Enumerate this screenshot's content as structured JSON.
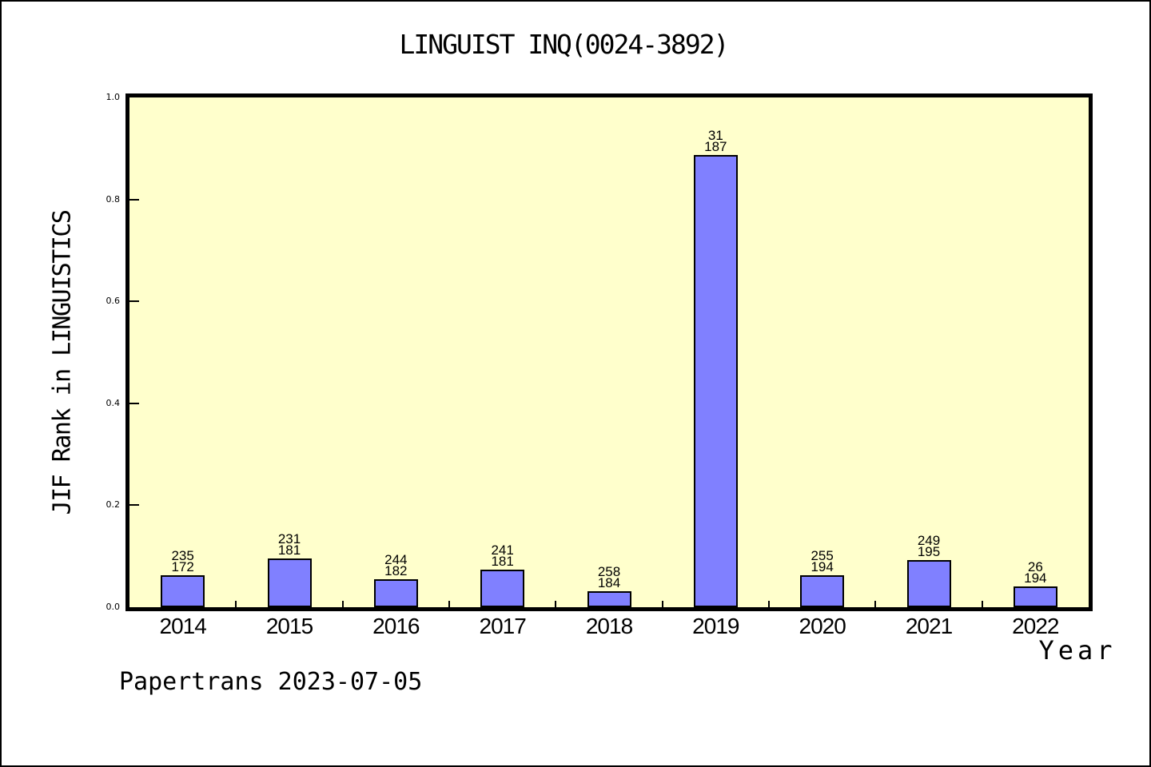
{
  "chart_data": {
    "type": "bar",
    "title": "LINGUIST INQ(0024-3892)",
    "xlabel": "Year",
    "ylabel": "JIF Rank in LINGUISTICS",
    "watermark": "Papertrans 2023-07-05",
    "categories": [
      "2014",
      "2015",
      "2016",
      "2017",
      "2018",
      "2019",
      "2020",
      "2021",
      "2022"
    ],
    "values": [
      0.063,
      0.096,
      0.055,
      0.074,
      0.031,
      0.887,
      0.063,
      0.093,
      0.041
    ],
    "bar_value_labels": [
      [
        "235",
        "172"
      ],
      [
        "231",
        "181"
      ],
      [
        "244",
        "182"
      ],
      [
        "241",
        "181"
      ],
      [
        "258",
        "184"
      ],
      [
        "31",
        "187"
      ],
      [
        "255",
        "194"
      ],
      [
        "249",
        "195"
      ],
      [
        "26",
        "194"
      ]
    ],
    "yticks": [
      "0.0",
      "0.2",
      "0.4",
      "0.6",
      "0.8",
      "1.0"
    ],
    "ylim": [
      0.0,
      1.0
    ],
    "legend": null,
    "grid": "off",
    "colors": {
      "bar_fill": "#8080FF",
      "bar_edge": "#000000",
      "plot_background": "#FFFFCC",
      "figure_background": "#FFFFFF",
      "text": "#000000"
    }
  }
}
